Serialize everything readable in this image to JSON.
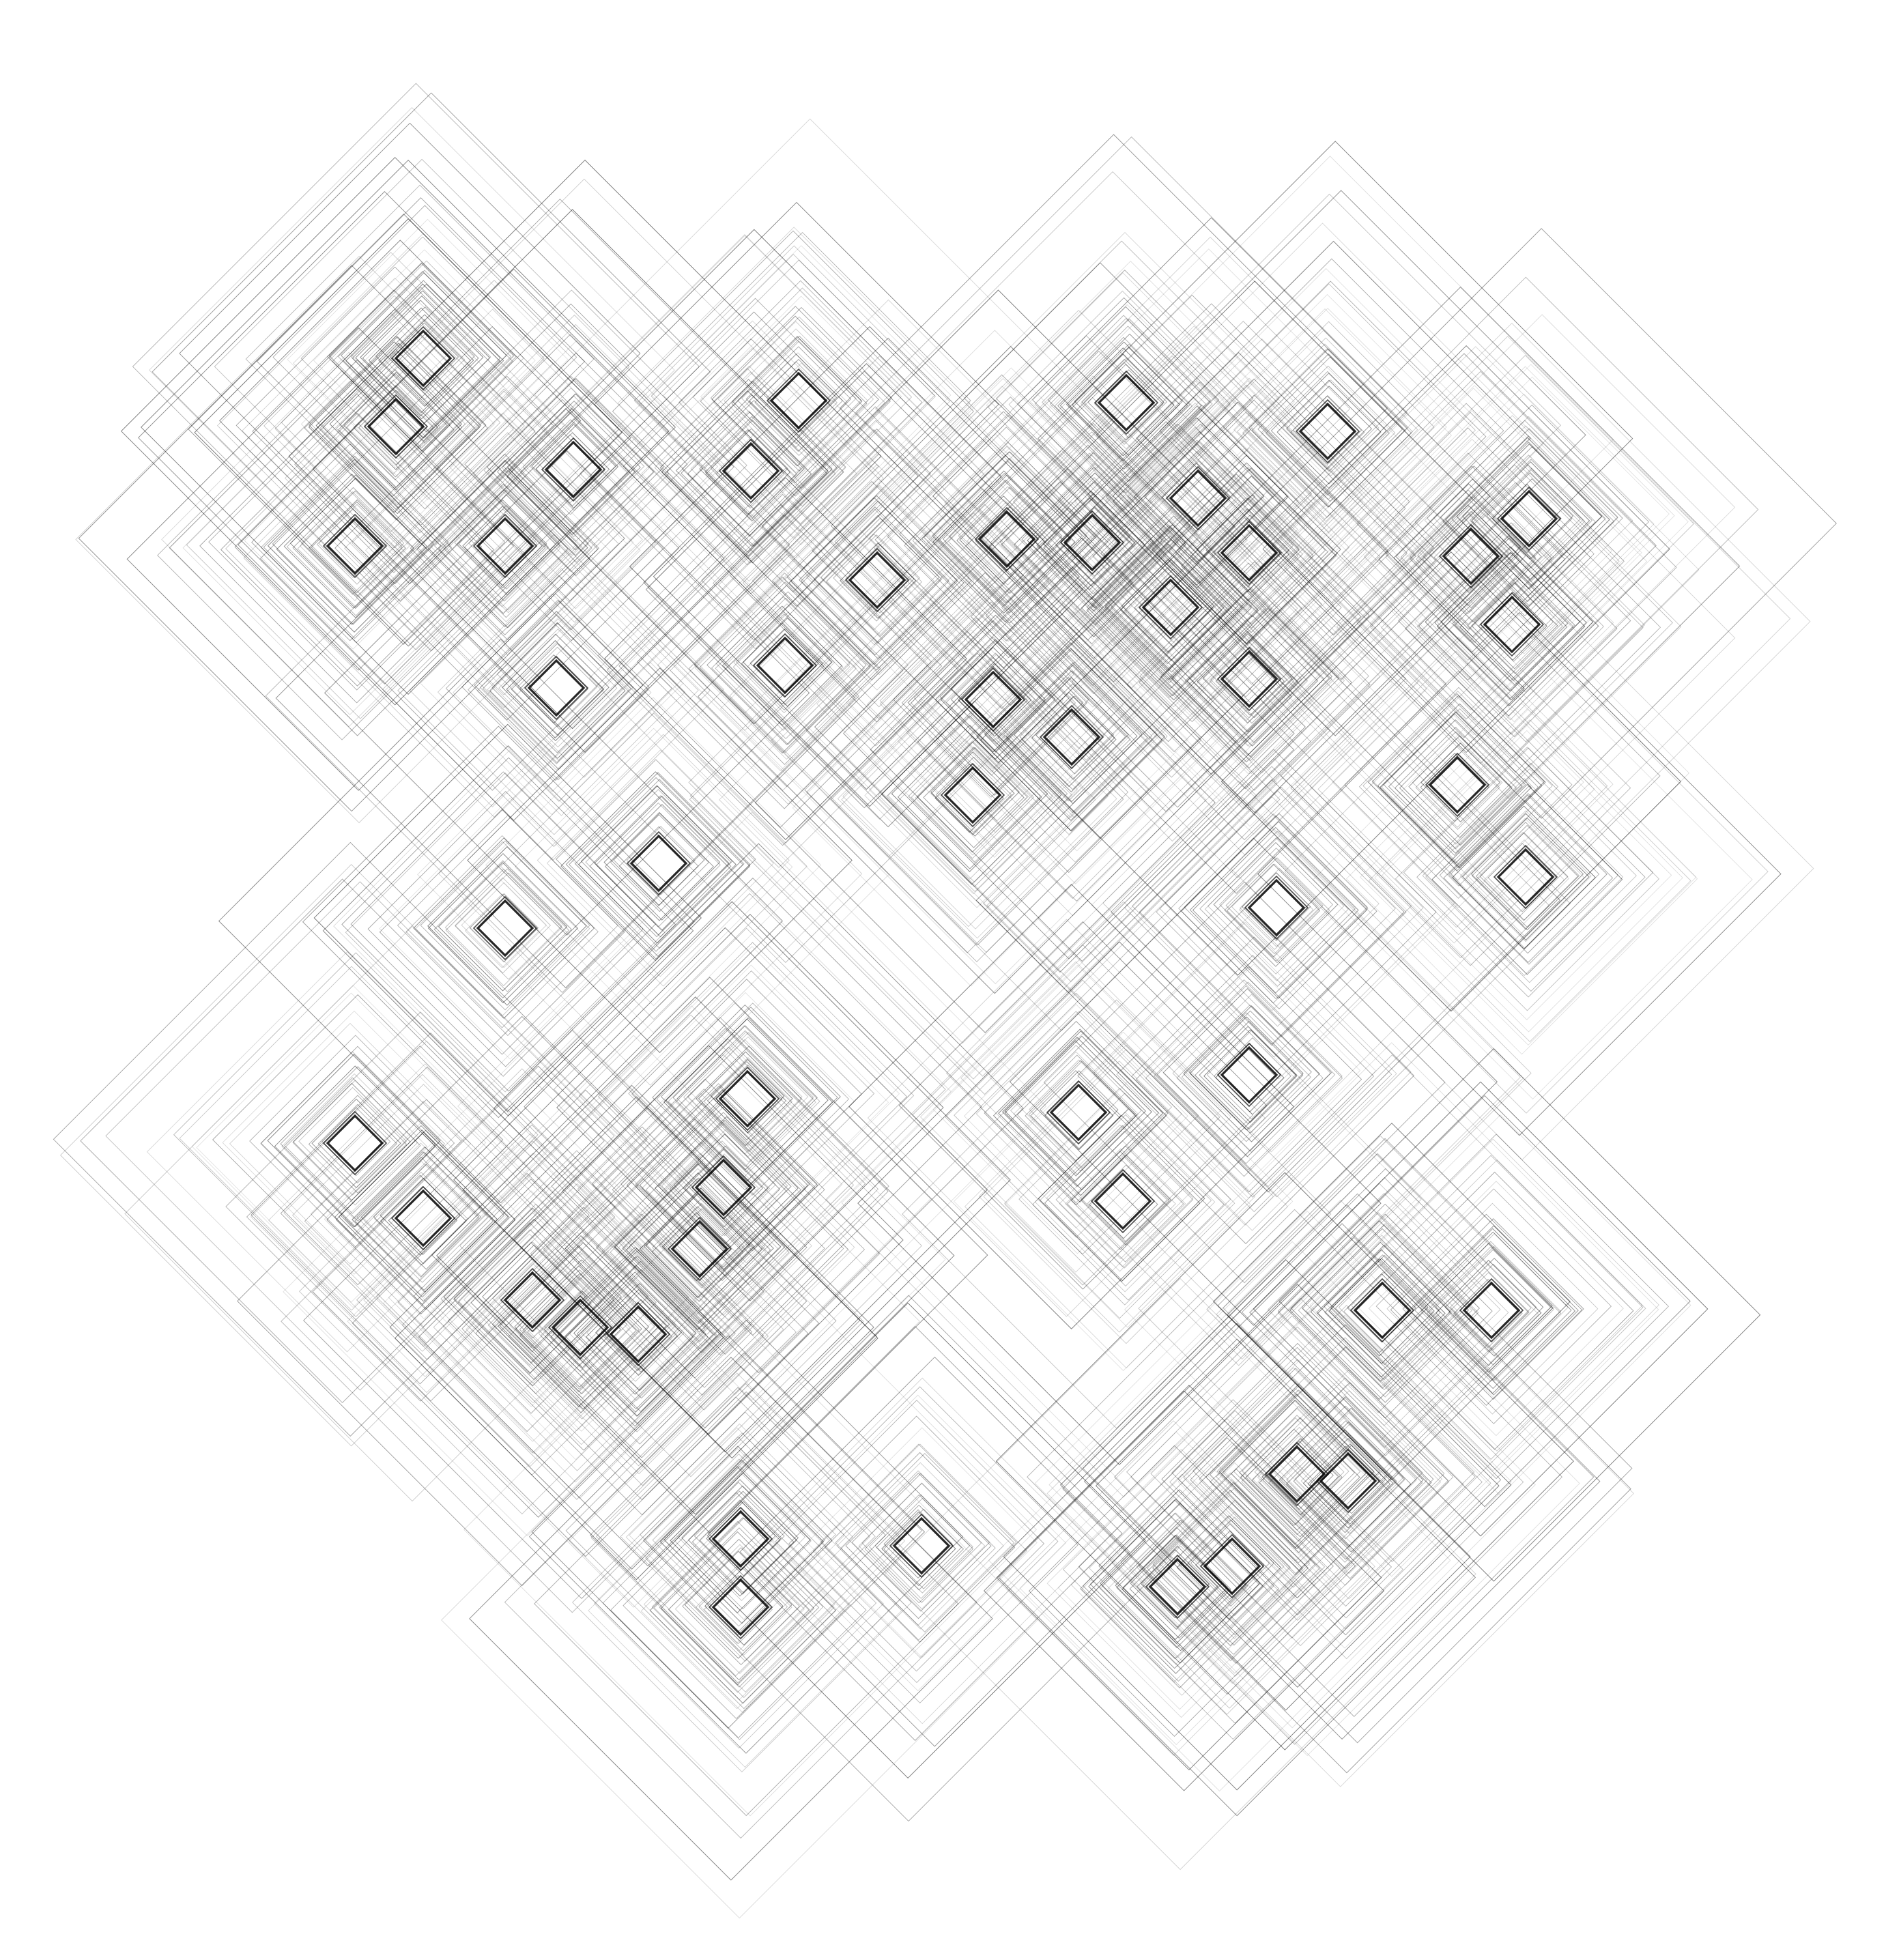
{
  "artwork": {
    "background_color": "#ffffff",
    "stroke_color": "#000000",
    "motif": "concentric-diamond-clusters",
    "cluster_count": 48
  }
}
